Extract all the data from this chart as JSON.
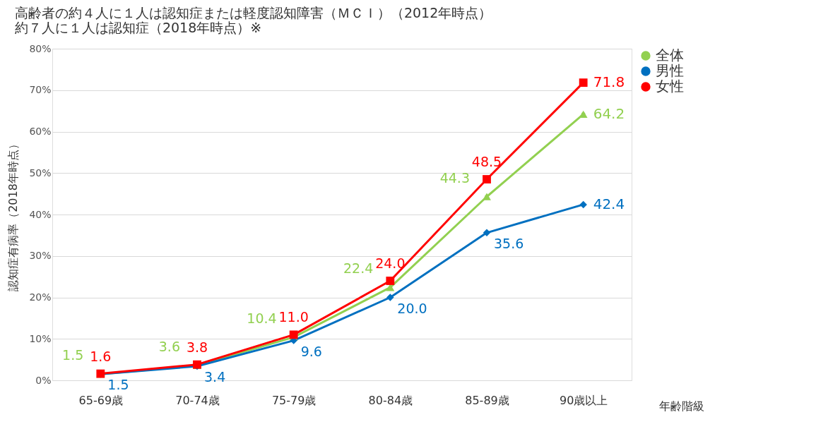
{
  "chart_data": {
    "type": "line",
    "title": [
      "高齢者の約４人に１人は認知症または軽度認知障害（ＭＣＩ）（2012年時点）",
      "約７人に１人は認知症（2018年時点）※"
    ],
    "xlabel": "年齢階級",
    "ylabel": "認知症有病率（2018年時点）",
    "categories": [
      "65-69歳",
      "70-74歳",
      "75-79歳",
      "80-84歳",
      "85-89歳",
      "90歳以上"
    ],
    "series": [
      {
        "name": "全体",
        "color": "#92d050",
        "marker": "triangle",
        "values": [
          1.5,
          3.6,
          10.4,
          22.4,
          44.3,
          64.2
        ],
        "value_labels": [
          "1.5",
          "3.6",
          "10.4",
          "22.4",
          "44.3",
          "64.2"
        ]
      },
      {
        "name": "男性",
        "color": "#0070c0",
        "marker": "diamond",
        "values": [
          1.5,
          3.4,
          9.6,
          20.0,
          35.6,
          42.4
        ],
        "value_labels": [
          "1.5",
          "3.4",
          "9.6",
          "20.0",
          "35.6",
          "42.4"
        ]
      },
      {
        "name": "女性",
        "color": "#ff0000",
        "marker": "square",
        "values": [
          1.6,
          3.8,
          11.0,
          24.0,
          48.5,
          71.8
        ],
        "value_labels": [
          "1.6",
          "3.8",
          "11.0",
          "24.0",
          "48.5",
          "71.8"
        ]
      }
    ],
    "ylim": [
      0,
      80
    ],
    "yticks": [
      {
        "value": 0,
        "label": "0%"
      },
      {
        "value": 10,
        "label": "10%"
      },
      {
        "value": 20,
        "label": "20%"
      },
      {
        "value": 30,
        "label": "30%"
      },
      {
        "value": 40,
        "label": "40%"
      },
      {
        "value": 50,
        "label": "50%"
      },
      {
        "value": 60,
        "label": "60%"
      },
      {
        "value": 70,
        "label": "70%"
      },
      {
        "value": 80,
        "label": "80%"
      }
    ],
    "grid": "y",
    "legend": "right",
    "line_style": "solid"
  }
}
